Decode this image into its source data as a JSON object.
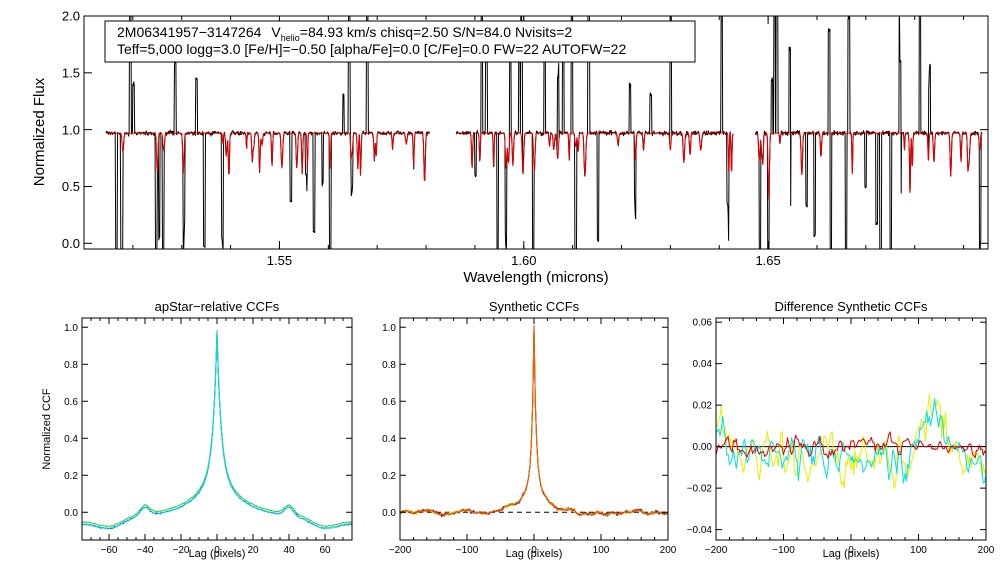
{
  "colors": {
    "black": "#000000",
    "red": "#e00000",
    "blue": "#0000cc",
    "green": "#22cc44",
    "cyan": "#00e0e0",
    "yellow": "#e6ee00",
    "orange": "#ee6600"
  },
  "chart_data": [
    {
      "id": "spectrum",
      "type": "line",
      "title": "",
      "xlabel": "Wavelength (microns)",
      "ylabel": "Normalized Flux",
      "xlim": [
        1.51,
        1.695
      ],
      "ylim": [
        -0.05,
        2.0
      ],
      "xticks": [
        {
          "v": 1.55,
          "label": "1.55"
        },
        {
          "v": 1.6,
          "label": "1.60"
        },
        {
          "v": 1.65,
          "label": "1.65"
        }
      ],
      "yticks": [
        {
          "v": 0.0,
          "label": "0.0"
        },
        {
          "v": 0.5,
          "label": "0.5"
        },
        {
          "v": 1.0,
          "label": "1.0"
        },
        {
          "v": 1.5,
          "label": "1.5"
        },
        {
          "v": 2.0,
          "label": "2.0"
        }
      ],
      "annotation": {
        "line1_id": "2M06341957−3147264",
        "line1_v": "V",
        "line1_vsub": "helio",
        "line1_rest": "=84.93 km/s  chisq=2.50  S/N=84.0  Nvisits=2",
        "line2": "Teff=5,000 logg=3.0 [Fe/H]=−0.50 [alpha/Fe]=0.0 [C/Fe]=0.0 FW=22 AUTOFW=22"
      },
      "chips": [
        [
          1.5145,
          1.5808
        ],
        [
          1.5862,
          1.6428
        ],
        [
          1.6474,
          1.6938
        ]
      ],
      "continuum": 0.97,
      "series": [
        {
          "name": "observed",
          "color": "#000000"
        },
        {
          "name": "model",
          "color": "#e00000"
        }
      ]
    },
    {
      "id": "apstar-ccf",
      "type": "line",
      "title": "apStar−relative CCFs",
      "xlabel": "Lag (pixels)",
      "ylabel": "Normalized CCF",
      "xlim": [
        -75,
        75
      ],
      "ylim": [
        -0.15,
        1.05
      ],
      "xticks": [
        {
          "v": -60,
          "label": "−60"
        },
        {
          "v": -40,
          "label": "−40"
        },
        {
          "v": -20,
          "label": "−20"
        },
        {
          "v": 0,
          "label": "0"
        },
        {
          "v": 20,
          "label": "20"
        },
        {
          "v": 40,
          "label": "40"
        },
        {
          "v": 60,
          "label": "60"
        }
      ],
      "yticks": [
        {
          "v": 0.0,
          "label": "0.0"
        },
        {
          "v": 0.2,
          "label": "0.2"
        },
        {
          "v": 0.4,
          "label": "0.4"
        },
        {
          "v": 0.6,
          "label": "0.6"
        },
        {
          "v": 0.8,
          "label": "0.8"
        },
        {
          "v": 1.0,
          "label": "1.0"
        }
      ],
      "peak": 1.0,
      "series": [
        {
          "name": "visit-1",
          "color": "#0000cc"
        },
        {
          "name": "visit-2",
          "color": "#22cc44"
        },
        {
          "name": "visit-3",
          "color": "#00e0e0"
        }
      ]
    },
    {
      "id": "synthetic-ccf",
      "type": "line",
      "title": "Synthetic CCFs",
      "xlabel": "Lag (pixels)",
      "ylabel": "",
      "xlim": [
        -200,
        200
      ],
      "ylim": [
        -0.15,
        1.05
      ],
      "xticks": [
        {
          "v": -200,
          "label": "−200"
        },
        {
          "v": -100,
          "label": "−100"
        },
        {
          "v": 0,
          "label": "0"
        },
        {
          "v": 100,
          "label": "100"
        },
        {
          "v": 200,
          "label": "200"
        }
      ],
      "yticks": [
        {
          "v": 0.0,
          "label": "0.0"
        },
        {
          "v": 0.2,
          "label": "0.2"
        },
        {
          "v": 0.4,
          "label": "0.4"
        },
        {
          "v": 0.6,
          "label": "0.6"
        },
        {
          "v": 0.8,
          "label": "0.8"
        },
        {
          "v": 1.0,
          "label": "1.0"
        }
      ],
      "hline": 0.0,
      "peak": 1.0,
      "series": [
        {
          "name": "visit-1",
          "color": "#0000cc"
        },
        {
          "name": "visit-2",
          "color": "#22cc44"
        },
        {
          "name": "visit-3",
          "color": "#e6ee00"
        },
        {
          "name": "visit-4",
          "color": "#e00000"
        },
        {
          "name": "visit-5",
          "color": "#ee6600"
        }
      ]
    },
    {
      "id": "difference-ccf",
      "type": "line",
      "title": "Difference Synthetic CCFs",
      "xlabel": "Lag (pixels)",
      "ylabel": "",
      "xlim": [
        -200,
        200
      ],
      "ylim": [
        -0.045,
        0.062
      ],
      "xticks": [
        {
          "v": -200,
          "label": "−200"
        },
        {
          "v": -100,
          "label": "−100"
        },
        {
          "v": 0,
          "label": "0"
        },
        {
          "v": 100,
          "label": "100"
        },
        {
          "v": 200,
          "label": "200"
        }
      ],
      "yticks": [
        {
          "v": -0.04,
          "label": "−0.04"
        },
        {
          "v": -0.02,
          "label": "−0.02"
        },
        {
          "v": 0.0,
          "label": "0.00"
        },
        {
          "v": 0.02,
          "label": "0.02"
        },
        {
          "v": 0.04,
          "label": "0.04"
        },
        {
          "v": 0.06,
          "label": "0.06"
        }
      ],
      "hline": 0.0,
      "series": [
        {
          "name": "diff-yellow",
          "color": "#e6ee00",
          "amp": 0.022
        },
        {
          "name": "diff-cyan",
          "color": "#00e0e0",
          "amp": 0.017
        },
        {
          "name": "diff-red",
          "color": "#e00000",
          "amp": 0.009
        }
      ]
    }
  ]
}
